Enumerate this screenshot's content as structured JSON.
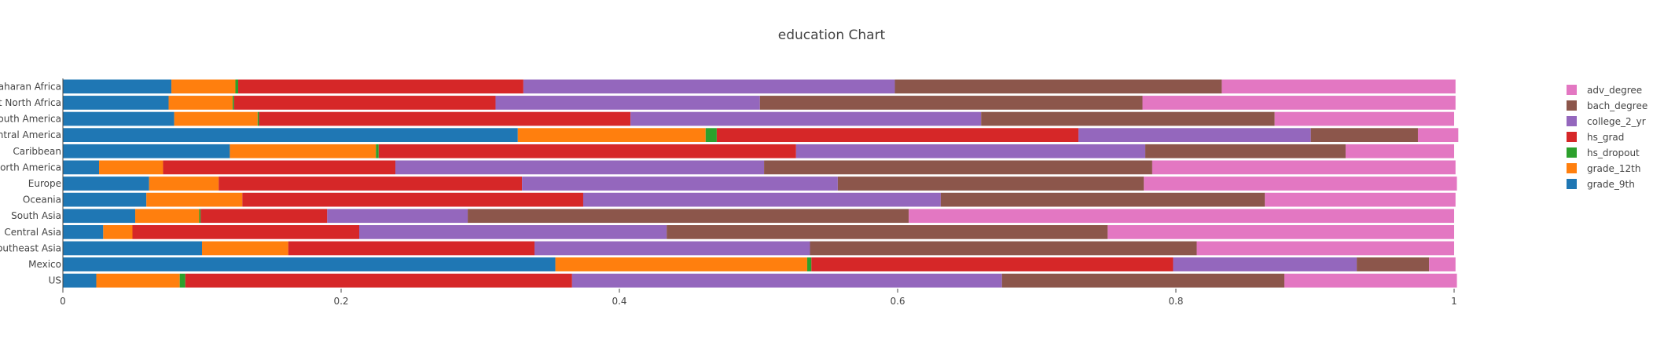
{
  "chart_data": {
    "type": "bar",
    "orientation": "horizontal",
    "stacked": true,
    "title": "education Chart",
    "xlabel": "",
    "ylabel": "",
    "xlim": [
      0,
      1
    ],
    "xticks": [
      0,
      0.2,
      0.4,
      0.6,
      0.8,
      1
    ],
    "xtick_labels": [
      "0",
      "0.2",
      "0.4",
      "0.6",
      "0.8",
      "1"
    ],
    "grid": false,
    "legend_position": "right",
    "categories": [
      "Sub-Saharan Africa",
      "Middle East North Africa",
      "South America",
      "Central America",
      "Caribbean",
      "North America",
      "Europe",
      "Oceania",
      "South Asia",
      "Central Asia",
      "Southeast Asia",
      "Mexico",
      "US"
    ],
    "series": [
      {
        "name": "grade_9th",
        "color": "#1f77b4",
        "values": [
          0.078,
          0.076,
          0.08,
          0.327,
          0.12,
          0.026,
          0.062,
          0.06,
          0.052,
          0.029,
          0.1,
          0.354,
          0.024
        ]
      },
      {
        "name": "grade_12th",
        "color": "#ff7f0e",
        "values": [
          0.046,
          0.046,
          0.06,
          0.135,
          0.105,
          0.046,
          0.05,
          0.069,
          0.046,
          0.021,
          0.062,
          0.181,
          0.06
        ]
      },
      {
        "name": "hs_dropout",
        "color": "#2ca02c",
        "values": [
          0.002,
          0.001,
          0.001,
          0.008,
          0.002,
          0.0,
          0.0,
          0.0,
          0.001,
          0.0,
          0.0,
          0.003,
          0.004
        ]
      },
      {
        "name": "hs_grad",
        "color": "#d62728",
        "values": [
          0.205,
          0.188,
          0.267,
          0.26,
          0.3,
          0.167,
          0.218,
          0.245,
          0.091,
          0.163,
          0.177,
          0.26,
          0.278
        ]
      },
      {
        "name": "college_2_yr",
        "color": "#9467bd",
        "values": [
          0.267,
          0.19,
          0.252,
          0.167,
          0.251,
          0.265,
          0.227,
          0.257,
          0.101,
          0.221,
          0.198,
          0.132,
          0.309
        ]
      },
      {
        "name": "bach_degree",
        "color": "#8c564b",
        "values": [
          0.235,
          0.275,
          0.211,
          0.077,
          0.144,
          0.279,
          0.22,
          0.233,
          0.317,
          0.317,
          0.278,
          0.052,
          0.203
        ]
      },
      {
        "name": "adv_degree",
        "color": "#e377c2",
        "values": [
          0.168,
          0.225,
          0.129,
          0.029,
          0.078,
          0.218,
          0.225,
          0.137,
          0.392,
          0.249,
          0.185,
          0.019,
          0.124
        ]
      }
    ],
    "legend_order": [
      "adv_degree",
      "bach_degree",
      "college_2_yr",
      "hs_grad",
      "hs_dropout",
      "grade_12th",
      "grade_9th"
    ]
  }
}
